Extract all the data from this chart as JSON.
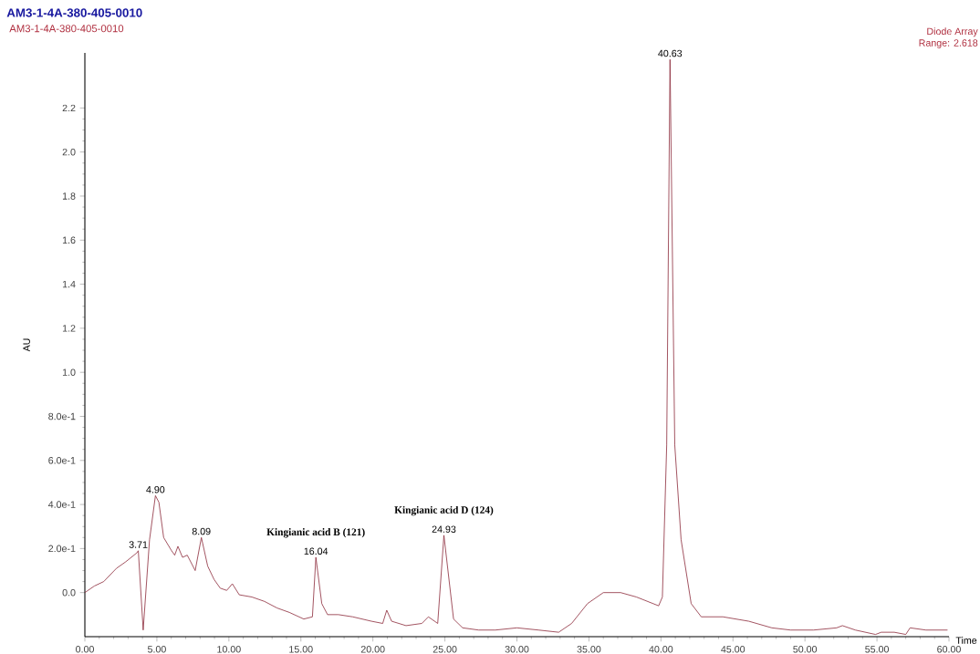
{
  "chart_data": {
    "type": "line",
    "title": "AM3-1-4A-380-405-0010",
    "subtitle": "AM3-1-4A-380-405-0010",
    "xlabel": "Time",
    "ylabel": "AU",
    "x": [
      0,
      0.66,
      1.31,
      2.19,
      2.84,
      3.6,
      3.71,
      4.05,
      4.49,
      4.9,
      5.14,
      5.47,
      6.02,
      6.24,
      6.46,
      6.78,
      7.11,
      7.66,
      8.09,
      8.53,
      8.97,
      9.4,
      9.85,
      10.24,
      10.72,
      11.6,
      12.47,
      13.35,
      14.2,
      15.2,
      15.8,
      16.04,
      16.45,
      16.85,
      17.6,
      18.6,
      19.9,
      20.68,
      20.96,
      21.3,
      22.3,
      23.4,
      23.85,
      24.5,
      24.93,
      25.6,
      26.23,
      27.34,
      28.5,
      30,
      31.5,
      32.9,
      33.8,
      34.9,
      36,
      37.2,
      38.3,
      39.84,
      40.1,
      40.4,
      40.63,
      40.96,
      41.4,
      42.1,
      42.8,
      44.3,
      46.1,
      47.7,
      49,
      50.6,
      52.2,
      52.6,
      53.5,
      54.9,
      55.3,
      56.2,
      57,
      57.3,
      58.4,
      59.9
    ],
    "series": [
      {
        "color": "#8c2a3a",
        "values": [
          0,
          0.03,
          0.05,
          0.11,
          0.14,
          0.18,
          0.19,
          -0.17,
          0.24,
          0.44,
          0.41,
          0.25,
          0.19,
          0.17,
          0.21,
          0.16,
          0.17,
          0.1,
          0.25,
          0.12,
          0.06,
          0.02,
          0.01,
          0.04,
          -0.01,
          -0.02,
          -0.04,
          -0.07,
          -0.09,
          -0.12,
          -0.11,
          0.16,
          -0.05,
          -0.1,
          -0.1,
          -0.11,
          -0.13,
          -0.14,
          -0.08,
          -0.13,
          -0.15,
          -0.14,
          -0.11,
          -0.14,
          0.26,
          -0.12,
          -0.16,
          -0.17,
          -0.17,
          -0.16,
          -0.17,
          -0.18,
          -0.14,
          -0.05,
          0,
          0,
          -0.02,
          -0.06,
          -0.02,
          0.67,
          2.42,
          0.67,
          0.24,
          -0.05,
          -0.11,
          -0.11,
          -0.13,
          -0.16,
          -0.17,
          -0.17,
          -0.16,
          -0.15,
          -0.17,
          -0.19,
          -0.18,
          -0.18,
          -0.19,
          -0.16,
          -0.17,
          -0.17
        ]
      }
    ],
    "xlim": [
      0,
      60
    ],
    "ylim": [
      -0.2,
      2.45
    ],
    "xticks": [
      {
        "value": 0,
        "label": "0.00"
      },
      {
        "value": 5,
        "label": "5.00"
      },
      {
        "value": 10,
        "label": "10.00"
      },
      {
        "value": 15,
        "label": "15.00"
      },
      {
        "value": 20,
        "label": "20.00"
      },
      {
        "value": 25,
        "label": "25.00"
      },
      {
        "value": 30,
        "label": "30.00"
      },
      {
        "value": 35,
        "label": "35.00"
      },
      {
        "value": 40,
        "label": "40.00"
      },
      {
        "value": 45,
        "label": "45.00"
      },
      {
        "value": 50,
        "label": "50.00"
      },
      {
        "value": 55,
        "label": "55.00"
      },
      {
        "value": 60,
        "label": "60.00"
      }
    ],
    "yticks": [
      {
        "value": 0,
        "label": "0.0"
      },
      {
        "value": 0.2,
        "label": "2.0e-1"
      },
      {
        "value": 0.4,
        "label": "4.0e-1"
      },
      {
        "value": 0.6,
        "label": "6.0e-1"
      },
      {
        "value": 0.8,
        "label": "8.0e-1"
      },
      {
        "value": 1.0,
        "label": "1.0"
      },
      {
        "value": 1.2,
        "label": "1.2"
      },
      {
        "value": 1.4,
        "label": "1.4"
      },
      {
        "value": 1.6,
        "label": "1.6"
      },
      {
        "value": 1.8,
        "label": "1.8"
      },
      {
        "value": 2.0,
        "label": "2.0"
      },
      {
        "value": 2.2,
        "label": "2.2"
      }
    ],
    "annotations": [
      {
        "text": "3.71",
        "x": 3.71,
        "y": 0.19
      },
      {
        "text": "4.90",
        "x": 4.9,
        "y": 0.44
      },
      {
        "text": "8.09",
        "x": 8.09,
        "y": 0.25
      },
      {
        "text": "16.04",
        "x": 16.04,
        "y": 0.16
      },
      {
        "text": "Kingianic acid B (121)",
        "x": 16.04,
        "y": 0.16
      },
      {
        "text": "24.93",
        "x": 24.93,
        "y": 0.26
      },
      {
        "text": "Kingianic acid D (124)",
        "x": 24.93,
        "y": 0.26
      },
      {
        "text": "40.63",
        "x": 40.63,
        "y": 2.42
      },
      "Diode Array",
      "Range: 2.618"
    ]
  }
}
